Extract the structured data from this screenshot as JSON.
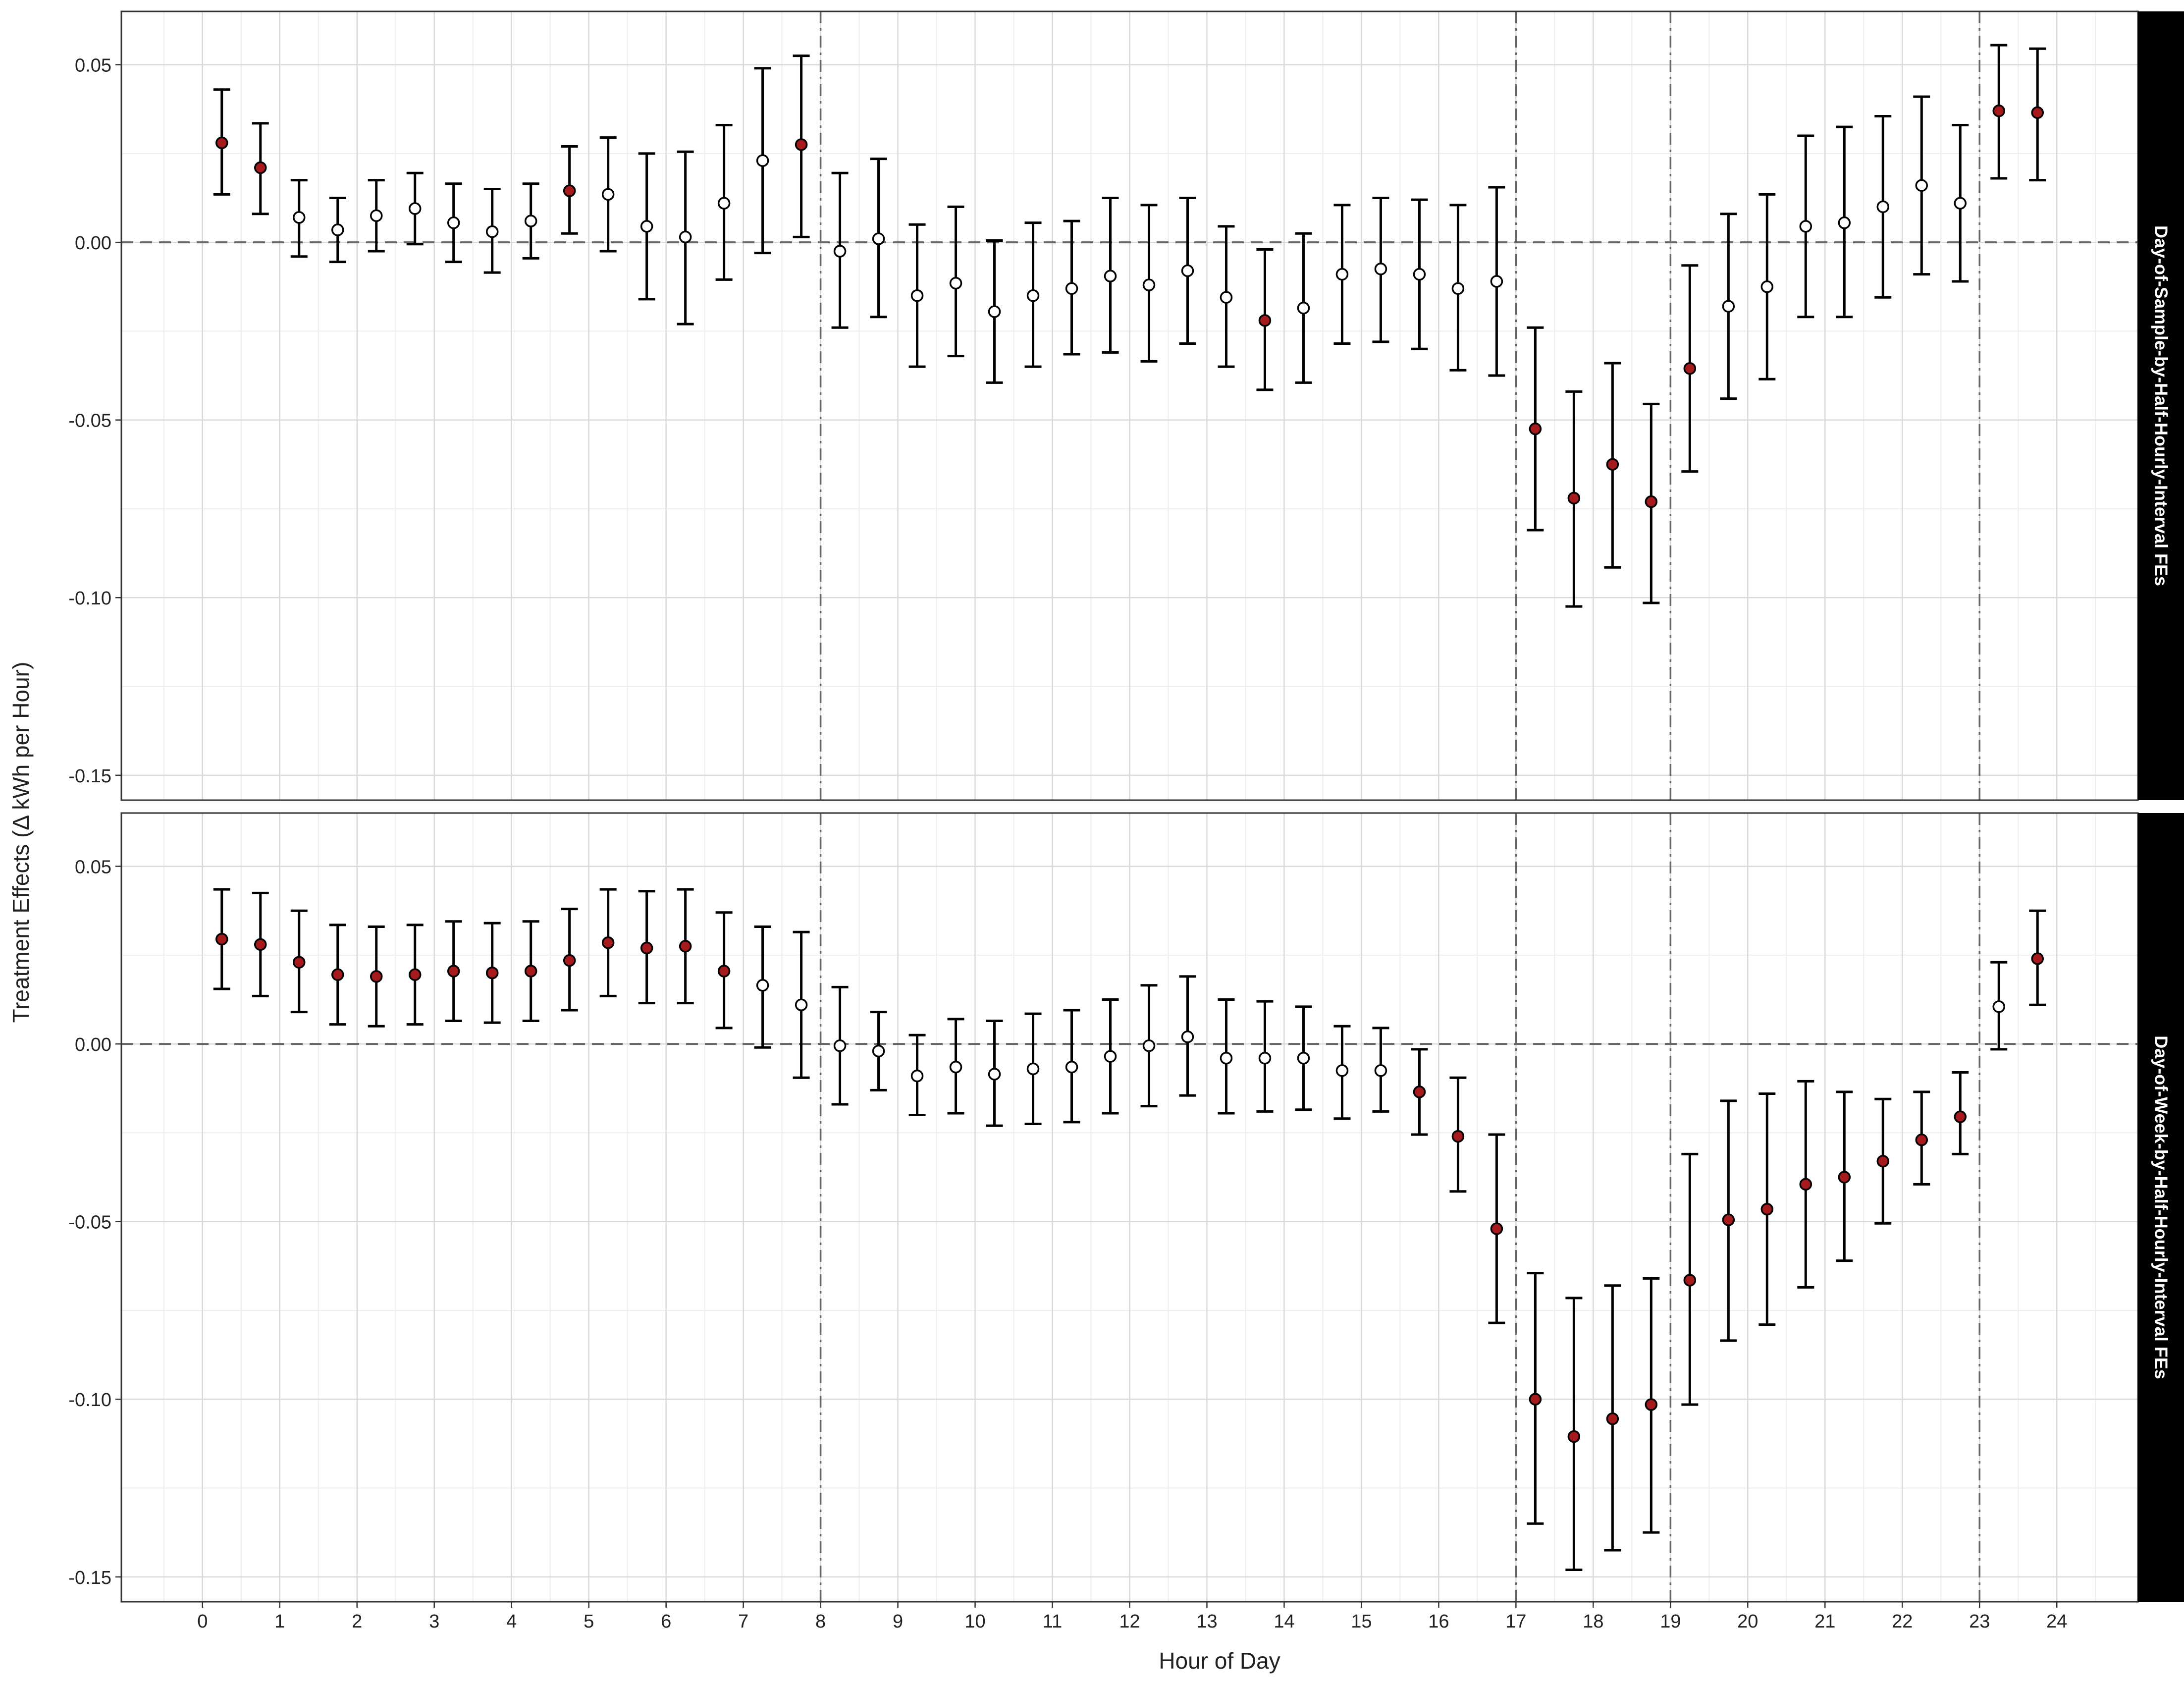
{
  "chart_data": {
    "type": "scatter",
    "title": "",
    "xlabel": "Hour of Day",
    "ylabel": "Treatment Effects  (Δ kWh per Hour)",
    "xlim": [
      -1.05,
      25.05
    ],
    "ylim": [
      -0.157,
      0.065
    ],
    "xticks": [
      0,
      1,
      2,
      3,
      4,
      5,
      6,
      7,
      8,
      9,
      10,
      11,
      12,
      13,
      14,
      15,
      16,
      17,
      18,
      19,
      20,
      21,
      22,
      23,
      24
    ],
    "yticks": [
      0.05,
      0.0,
      -0.05,
      -0.1,
      -0.15
    ],
    "ytick_labels": [
      "0.05",
      "0.00",
      "-0.05",
      "-0.10",
      "-0.15"
    ],
    "hline": 0,
    "vlines": [
      8,
      17,
      19,
      23
    ],
    "grid": true,
    "legend": "none",
    "colors": {
      "significant_fill": "#a6191c",
      "insignificant_fill": "#ffffff",
      "marker_edge": "#000000",
      "strip_bg": "#000000",
      "strip_text": "#ffffff",
      "grid": "#d9d9d9",
      "ref_line": "#666666"
    },
    "x": [
      0.25,
      0.75,
      1.25,
      1.75,
      2.25,
      2.75,
      3.25,
      3.75,
      4.25,
      4.75,
      5.25,
      5.75,
      6.25,
      6.75,
      7.25,
      7.75,
      8.25,
      8.75,
      9.25,
      9.75,
      10.25,
      10.75,
      11.25,
      11.75,
      12.25,
      12.75,
      13.25,
      13.75,
      14.25,
      14.75,
      15.25,
      15.75,
      16.25,
      16.75,
      17.25,
      17.75,
      18.25,
      18.75,
      19.25,
      19.75,
      20.25,
      20.75,
      21.25,
      21.75,
      22.25,
      22.75,
      23.25,
      23.75
    ],
    "panels": [
      {
        "strip_label": "Day-of-Sample-by-Half-Hourly-Interval FEs",
        "estimate": [
          0.028,
          0.021,
          0.007,
          0.0035,
          0.0075,
          0.0095,
          0.0055,
          0.003,
          0.006,
          0.0145,
          0.0135,
          0.0045,
          0.0015,
          0.011,
          0.023,
          0.0275,
          -0.0025,
          0.001,
          -0.015,
          -0.0115,
          -0.0195,
          -0.015,
          -0.013,
          -0.0095,
          -0.012,
          -0.008,
          -0.0155,
          -0.022,
          -0.0185,
          -0.009,
          -0.0075,
          -0.009,
          -0.013,
          -0.011,
          -0.0525,
          -0.072,
          -0.0625,
          -0.073,
          -0.0355,
          -0.018,
          -0.0125,
          0.0045,
          0.0055,
          0.01,
          0.016,
          0.011,
          0.037,
          0.0365
        ],
        "lower": [
          0.0135,
          0.008,
          -0.004,
          -0.0055,
          -0.0025,
          -0.0005,
          -0.0055,
          -0.0085,
          -0.0045,
          0.0025,
          -0.0025,
          -0.016,
          -0.023,
          -0.0105,
          -0.003,
          0.0015,
          -0.024,
          -0.021,
          -0.035,
          -0.032,
          -0.0395,
          -0.035,
          -0.0315,
          -0.031,
          -0.0335,
          -0.0285,
          -0.035,
          -0.0415,
          -0.0395,
          -0.0285,
          -0.028,
          -0.03,
          -0.036,
          -0.0375,
          -0.081,
          -0.1025,
          -0.0915,
          -0.1015,
          -0.0645,
          -0.044,
          -0.0385,
          -0.021,
          -0.021,
          -0.0155,
          -0.009,
          -0.011,
          0.018,
          0.0175
        ],
        "upper": [
          0.043,
          0.0335,
          0.0175,
          0.0125,
          0.0175,
          0.0195,
          0.0165,
          0.015,
          0.0165,
          0.027,
          0.0295,
          0.025,
          0.0255,
          0.033,
          0.049,
          0.0525,
          0.0195,
          0.0235,
          0.005,
          0.01,
          0.0005,
          0.0055,
          0.006,
          0.0125,
          0.0105,
          0.0125,
          0.0045,
          -0.002,
          0.0025,
          0.0105,
          0.0125,
          0.012,
          0.0105,
          0.0155,
          -0.024,
          -0.042,
          -0.034,
          -0.0455,
          -0.0065,
          0.008,
          0.0135,
          0.03,
          0.0325,
          0.0355,
          0.041,
          0.033,
          0.0555,
          0.0545
        ]
      },
      {
        "strip_label": "Day-of-Week-by-Half-Hourly-Interval FEs",
        "estimate": [
          0.0295,
          0.028,
          0.023,
          0.0195,
          0.019,
          0.0195,
          0.0205,
          0.02,
          0.0205,
          0.0235,
          0.0285,
          0.027,
          0.0275,
          0.0205,
          0.0165,
          0.011,
          -0.0005,
          -0.002,
          -0.009,
          -0.0065,
          -0.0085,
          -0.007,
          -0.0065,
          -0.0035,
          -0.0005,
          0.002,
          -0.004,
          -0.004,
          -0.004,
          -0.0075,
          -0.0075,
          -0.0135,
          -0.026,
          -0.052,
          -0.1,
          -0.1105,
          -0.1055,
          -0.1015,
          -0.0665,
          -0.0495,
          -0.0465,
          -0.0395,
          -0.0375,
          -0.033,
          -0.027,
          -0.0205,
          0.0105,
          0.024
        ],
        "lower": [
          0.0155,
          0.0135,
          0.009,
          0.0055,
          0.005,
          0.0055,
          0.0065,
          0.006,
          0.0065,
          0.0095,
          0.0135,
          0.0115,
          0.0115,
          0.0045,
          -0.001,
          -0.0095,
          -0.017,
          -0.013,
          -0.02,
          -0.0195,
          -0.023,
          -0.0225,
          -0.022,
          -0.0195,
          -0.0175,
          -0.0145,
          -0.0195,
          -0.019,
          -0.0185,
          -0.021,
          -0.019,
          -0.0255,
          -0.0415,
          -0.0785,
          -0.135,
          -0.148,
          -0.1425,
          -0.1375,
          -0.1015,
          -0.0835,
          -0.079,
          -0.0685,
          -0.061,
          -0.0505,
          -0.0395,
          -0.031,
          -0.0015,
          0.011
        ],
        "upper": [
          0.0435,
          0.0425,
          0.0375,
          0.0335,
          0.033,
          0.0335,
          0.0345,
          0.034,
          0.0345,
          0.038,
          0.0435,
          0.043,
          0.0435,
          0.037,
          0.033,
          0.0315,
          0.016,
          0.009,
          0.0025,
          0.007,
          0.0065,
          0.0085,
          0.0095,
          0.0125,
          0.0165,
          0.019,
          0.0125,
          0.012,
          0.0105,
          0.005,
          0.0045,
          -0.0015,
          -0.0095,
          -0.0255,
          -0.0645,
          -0.0715,
          -0.068,
          -0.066,
          -0.031,
          -0.016,
          -0.014,
          -0.0105,
          -0.0135,
          -0.0155,
          -0.0135,
          -0.008,
          0.023,
          0.0375
        ]
      }
    ]
  }
}
